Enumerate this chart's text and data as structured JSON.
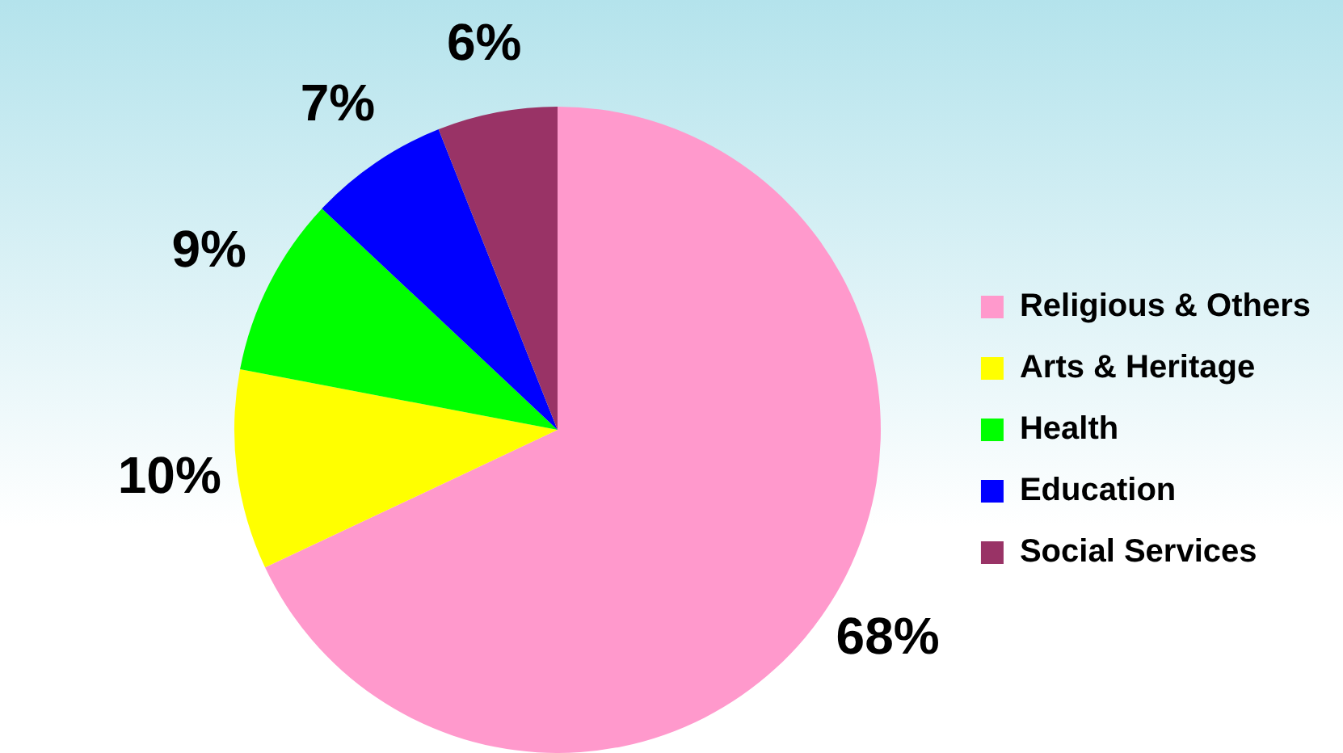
{
  "chart_data": {
    "type": "pie",
    "categories": [
      "Religious & Others",
      "Arts & Heritage",
      "Health",
      "Education",
      "Social Services"
    ],
    "values": [
      68,
      10,
      9,
      7,
      6
    ],
    "colors": [
      "#ff99cc",
      "#ffff00",
      "#00ff00",
      "#0000ff",
      "#993366"
    ],
    "value_labels": [
      "68%",
      "10%",
      "9%",
      "7%",
      "6%"
    ],
    "legend": "right"
  }
}
